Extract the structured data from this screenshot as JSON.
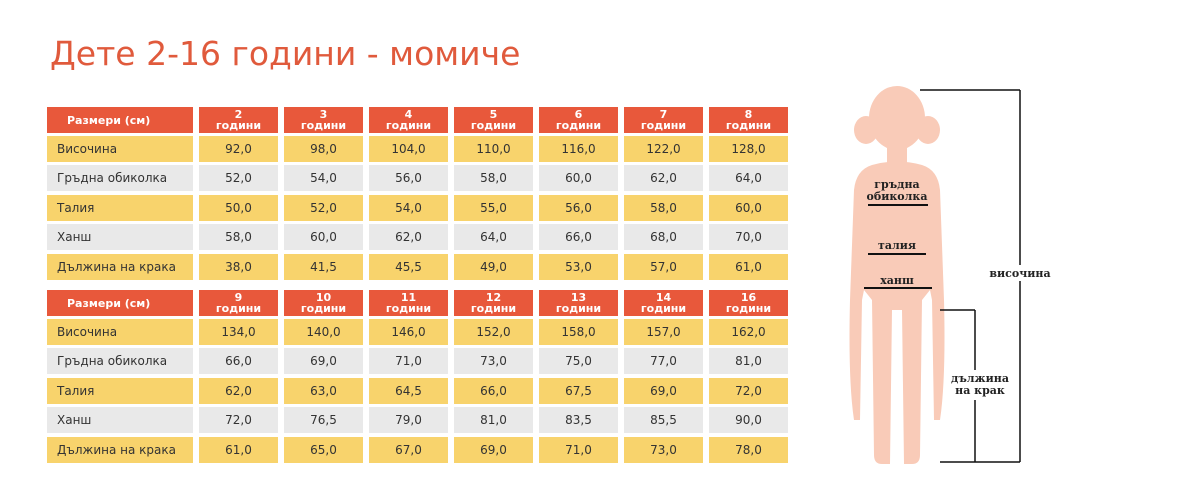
{
  "title": "Дете 2-16 години - момиче",
  "tables": [
    {
      "header": {
        "label": "Размери (см)",
        "columns": [
          {
            "age": "2",
            "unit": "години"
          },
          {
            "age": "3",
            "unit": "години"
          },
          {
            "age": "4",
            "unit": "години"
          },
          {
            "age": "5",
            "unit": "години"
          },
          {
            "age": "6",
            "unit": "години"
          },
          {
            "age": "7",
            "unit": "години"
          },
          {
            "age": "8",
            "unit": "години"
          }
        ]
      },
      "rows": [
        {
          "label": "Височина",
          "values": [
            "92,0",
            "98,0",
            "104,0",
            "110,0",
            "116,0",
            "122,0",
            "128,0"
          ]
        },
        {
          "label": "Гръдна обиколка",
          "values": [
            "52,0",
            "54,0",
            "56,0",
            "58,0",
            "60,0",
            "62,0",
            "64,0"
          ]
        },
        {
          "label": "Талия",
          "values": [
            "50,0",
            "52,0",
            "54,0",
            "55,0",
            "56,0",
            "58,0",
            "60,0"
          ]
        },
        {
          "label": "Ханш",
          "values": [
            "58,0",
            "60,0",
            "62,0",
            "64,0",
            "66,0",
            "68,0",
            "70,0"
          ]
        },
        {
          "label": "Дължина на крака",
          "values": [
            "38,0",
            "41,5",
            "45,5",
            "49,0",
            "53,0",
            "57,0",
            "61,0"
          ]
        }
      ]
    },
    {
      "header": {
        "label": "Размери (см)",
        "columns": [
          {
            "age": "9",
            "unit": "години"
          },
          {
            "age": "10",
            "unit": "години"
          },
          {
            "age": "11",
            "unit": "години"
          },
          {
            "age": "12",
            "unit": "години"
          },
          {
            "age": "13",
            "unit": "години"
          },
          {
            "age": "14",
            "unit": "години"
          },
          {
            "age": "16",
            "unit": "години"
          }
        ]
      },
      "rows": [
        {
          "label": "Височина",
          "values": [
            "134,0",
            "140,0",
            "146,0",
            "152,0",
            "158,0",
            "157,0",
            "162,0"
          ]
        },
        {
          "label": "Гръдна обиколка",
          "values": [
            "66,0",
            "69,0",
            "71,0",
            "73,0",
            "75,0",
            "77,0",
            "81,0"
          ]
        },
        {
          "label": "Талия",
          "values": [
            "62,0",
            "63,0",
            "64,5",
            "66,0",
            "67,5",
            "69,0",
            "72,0"
          ]
        },
        {
          "label": "Ханш",
          "values": [
            "72,0",
            "76,5",
            "79,0",
            "81,0",
            "83,5",
            "85,5",
            "90,0"
          ]
        },
        {
          "label": "Дължина на крака",
          "values": [
            "61,0",
            "65,0",
            "67,0",
            "69,0",
            "71,0",
            "73,0",
            "78,0"
          ]
        }
      ]
    }
  ],
  "figure": {
    "chest": [
      "гръдна",
      "обиколка"
    ],
    "waist": "талия",
    "hips": "ханш",
    "height": "височина",
    "leg": [
      "дължина",
      "на крак"
    ]
  }
}
